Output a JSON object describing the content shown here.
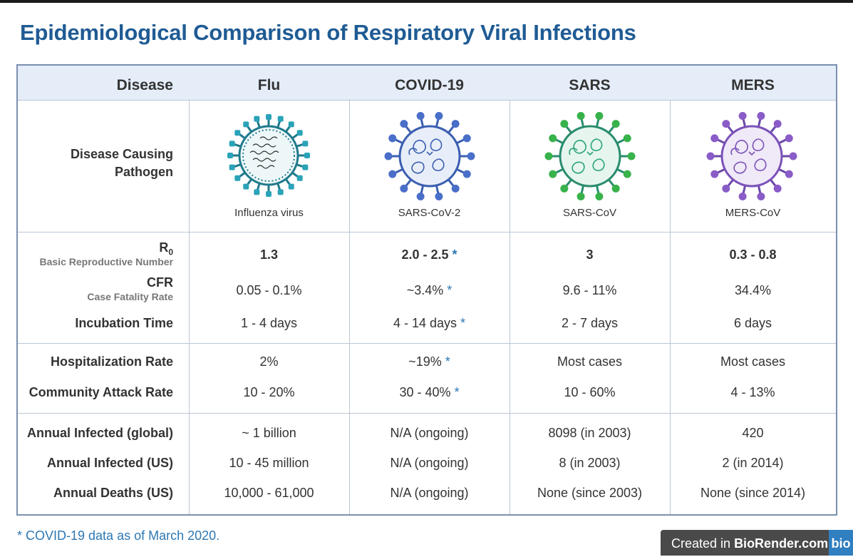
{
  "title": "Epidemiological Comparison of Respiratory Viral Infections",
  "columns": [
    "Disease",
    "Flu",
    "COVID-19",
    "SARS",
    "MERS"
  ],
  "pathogen_label_line1": "Disease Causing",
  "pathogen_label_line2": "Pathogen",
  "pathogens": [
    {
      "name": "Influenza virus",
      "icon": "influenza-virus-icon",
      "color": "#1f7a8c"
    },
    {
      "name": "SARS-CoV-2",
      "icon": "sars-cov-2-icon",
      "color": "#3b5fb0"
    },
    {
      "name": "SARS-CoV",
      "icon": "sars-cov-icon",
      "color": "#2aa378"
    },
    {
      "name": "MERS-CoV",
      "icon": "mers-cov-icon",
      "color": "#7b52b8"
    }
  ],
  "rows": {
    "r0": {
      "label": "R",
      "label_sub_glyph": "0",
      "sublabel": "Basic Reproductive Number",
      "values": [
        "1.3",
        "2.0 - 2.5",
        "3",
        "0.3 - 0.8"
      ]
    },
    "cfr": {
      "label": "CFR",
      "sublabel": "Case Fatality Rate",
      "values": [
        "0.05 - 0.1%",
        "~3.4%",
        "9.6 - 11%",
        "34.4%"
      ]
    },
    "incubation": {
      "label": "Incubation Time",
      "values": [
        "1 - 4 days",
        "4 - 14 days",
        "2 - 7 days",
        "6 days"
      ]
    },
    "hospitalization": {
      "label": "Hospitalization Rate",
      "values": [
        "2%",
        "~19%",
        "Most cases",
        "Most cases"
      ]
    },
    "attack": {
      "label": "Community Attack Rate",
      "values": [
        "10 - 20%",
        "30 - 40%",
        "10 - 60%",
        "4 - 13%"
      ]
    },
    "infected_global": {
      "label": "Annual Infected (global)",
      "values": [
        "~ 1 billion",
        "N/A (ongoing)",
        "8098 (in 2003)",
        "420"
      ]
    },
    "infected_us": {
      "label": "Annual Infected (US)",
      "values": [
        "10 - 45 million",
        "N/A (ongoing)",
        "8 (in 2003)",
        "2 (in 2014)"
      ]
    },
    "deaths_us": {
      "label": "Annual Deaths (US)",
      "values": [
        "10,000 - 61,000",
        "N/A (ongoing)",
        "None (since 2003)",
        "None (since 2014)"
      ]
    }
  },
  "asterisk": "*",
  "footnote": "* COVID-19 data as of March 2020.",
  "badge": {
    "prefix": "Created in ",
    "brand": "BioRender.com",
    "logo": "bio"
  }
}
